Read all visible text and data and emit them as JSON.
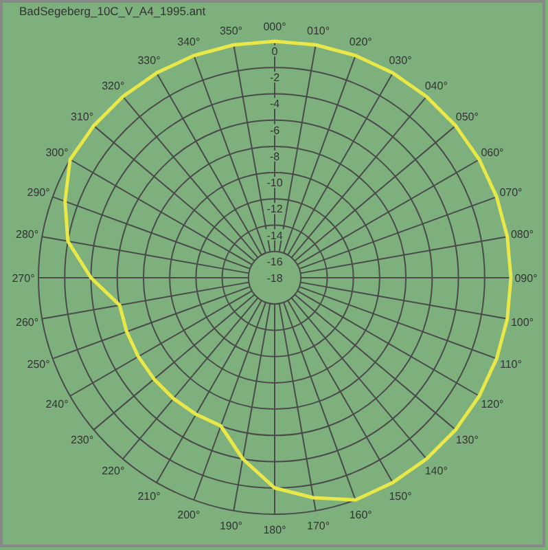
{
  "chart_data": {
    "type": "radar",
    "title": "BadSegeberg_10C_V_A4_1995.ant",
    "categories": [
      "000°",
      "010°",
      "020°",
      "030°",
      "040°",
      "050°",
      "060°",
      "070°",
      "080°",
      "090°",
      "100°",
      "110°",
      "120°",
      "130°",
      "140°",
      "150°",
      "160°",
      "170°",
      "180°",
      "190°",
      "200°",
      "210°",
      "220°",
      "230°",
      "240°",
      "250°",
      "260°",
      "270°",
      "280°",
      "290°",
      "300°",
      "310°",
      "320°",
      "330°",
      "340°",
      "350°"
    ],
    "series": [
      {
        "color": "#e8e84a",
        "values": [
          0,
          0,
          0,
          0,
          0,
          0,
          0,
          0,
          0,
          0,
          0,
          0,
          0,
          0,
          0,
          0,
          0,
          -1,
          -2,
          -4,
          -6,
          -6,
          -6,
          -6,
          -6,
          -6,
          -6,
          -4,
          -2,
          -1,
          0,
          0,
          0,
          0,
          0,
          0
        ]
      }
    ],
    "ylim": [
      -18,
      0
    ],
    "yticks": [
      0,
      -2,
      -4,
      -6,
      -8,
      -10,
      -12,
      -14,
      -16,
      -18
    ],
    "grid": true
  }
}
